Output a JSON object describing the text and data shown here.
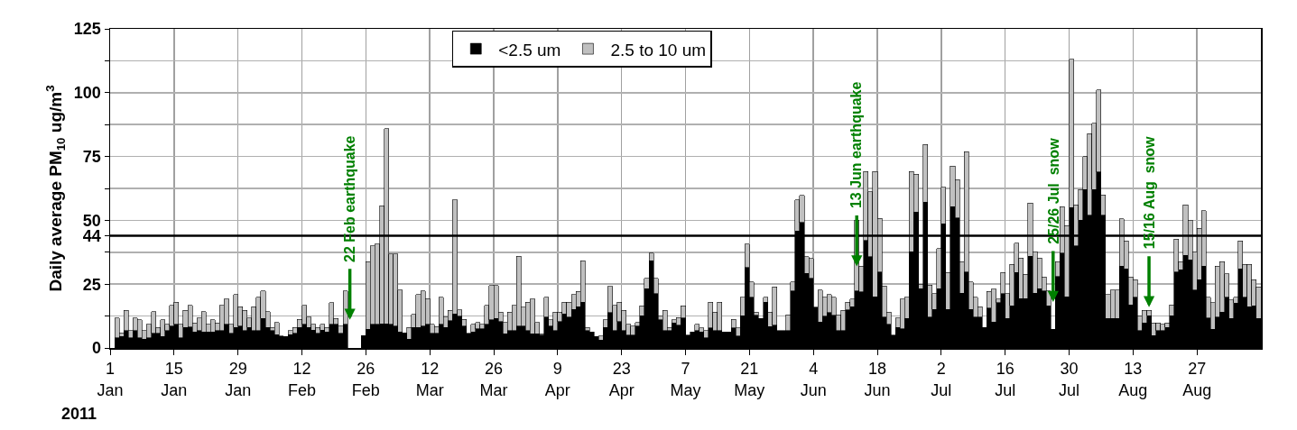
{
  "chart_data": {
    "type": "bar",
    "stacked": true,
    "ylabel": "Daily average PM$_{10}$ ug/m$^{3}$",
    "x": [
      "2011-01-02",
      "2011-01-03",
      "2011-01-04",
      "2011-01-05",
      "2011-01-06",
      "2011-01-07",
      "2011-01-08",
      "2011-01-09",
      "2011-01-10",
      "2011-01-11",
      "2011-01-12",
      "2011-01-13",
      "2011-01-14",
      "2011-01-15",
      "2011-01-16",
      "2011-01-17",
      "2011-01-18",
      "2011-01-19",
      "2011-01-20",
      "2011-01-21",
      "2011-01-22",
      "2011-01-23",
      "2011-01-24",
      "2011-01-25",
      "2011-01-26",
      "2011-01-27",
      "2011-01-28",
      "2011-01-29",
      "2011-01-30",
      "2011-01-31",
      "2011-02-01",
      "2011-02-02",
      "2011-02-03",
      "2011-02-04",
      "2011-02-05",
      "2011-02-06",
      "2011-02-07",
      "2011-02-08",
      "2011-02-09",
      "2011-02-10",
      "2011-02-11",
      "2011-02-12",
      "2011-02-13",
      "2011-02-14",
      "2011-02-15",
      "2011-02-16",
      "2011-02-17",
      "2011-02-18",
      "2011-02-19",
      "2011-02-20",
      "2011-02-21",
      "2011-02-22",
      "2011-02-23",
      "2011-02-24",
      "2011-02-25",
      "2011-02-26",
      "2011-02-27",
      "2011-02-28",
      "2011-03-01",
      "2011-03-02",
      "2011-03-03",
      "2011-03-04",
      "2011-03-05",
      "2011-03-06",
      "2011-03-07",
      "2011-03-08",
      "2011-03-09",
      "2011-03-10",
      "2011-03-11",
      "2011-03-12",
      "2011-03-13",
      "2011-03-14",
      "2011-03-15",
      "2011-03-16",
      "2011-03-17",
      "2011-03-18",
      "2011-03-19",
      "2011-03-20",
      "2011-03-21",
      "2011-03-22",
      "2011-03-23",
      "2011-03-24",
      "2011-03-25",
      "2011-03-26",
      "2011-03-27",
      "2011-03-28",
      "2011-03-29",
      "2011-03-30",
      "2011-03-31",
      "2011-04-01",
      "2011-04-02",
      "2011-04-03",
      "2011-04-04",
      "2011-04-05",
      "2011-04-06",
      "2011-04-07",
      "2011-04-08",
      "2011-04-09",
      "2011-04-10",
      "2011-04-11",
      "2011-04-12",
      "2011-04-13",
      "2011-04-14",
      "2011-04-15",
      "2011-04-16",
      "2011-04-17",
      "2011-04-18",
      "2011-04-19",
      "2011-04-20",
      "2011-04-21",
      "2011-04-22",
      "2011-04-23",
      "2011-04-24",
      "2011-04-25",
      "2011-04-26",
      "2011-04-27",
      "2011-04-28",
      "2011-04-29",
      "2011-04-30",
      "2011-05-01",
      "2011-05-02",
      "2011-05-03",
      "2011-05-04",
      "2011-05-05",
      "2011-05-06",
      "2011-05-07",
      "2011-05-08",
      "2011-05-09",
      "2011-05-10",
      "2011-05-11",
      "2011-05-12",
      "2011-05-13",
      "2011-05-14",
      "2011-05-15",
      "2011-05-16",
      "2011-05-17",
      "2011-05-18",
      "2011-05-19",
      "2011-05-20",
      "2011-05-21",
      "2011-05-22",
      "2011-05-23",
      "2011-05-24",
      "2011-05-25",
      "2011-05-26",
      "2011-05-27",
      "2011-05-28",
      "2011-05-29",
      "2011-05-30",
      "2011-05-31",
      "2011-06-01",
      "2011-06-02",
      "2011-06-03",
      "2011-06-04",
      "2011-06-05",
      "2011-06-06",
      "2011-06-07",
      "2011-06-08",
      "2011-06-09",
      "2011-06-10",
      "2011-06-11",
      "2011-06-12",
      "2011-06-13",
      "2011-06-14",
      "2011-06-15",
      "2011-06-16",
      "2011-06-17",
      "2011-06-18",
      "2011-06-19",
      "2011-06-20",
      "2011-06-21",
      "2011-06-22",
      "2011-06-23",
      "2011-06-24",
      "2011-06-25",
      "2011-06-26",
      "2011-06-27",
      "2011-06-28",
      "2011-06-29",
      "2011-06-30",
      "2011-07-01",
      "2011-07-02",
      "2011-07-03",
      "2011-07-04",
      "2011-07-05",
      "2011-07-06",
      "2011-07-07",
      "2011-07-08",
      "2011-07-09",
      "2011-07-10",
      "2011-07-11",
      "2011-07-12",
      "2011-07-13",
      "2011-07-14",
      "2011-07-15",
      "2011-07-16",
      "2011-07-17",
      "2011-07-18",
      "2011-07-19",
      "2011-07-20",
      "2011-07-21",
      "2011-07-22",
      "2011-07-23",
      "2011-07-24",
      "2011-07-25",
      "2011-07-26",
      "2011-07-27",
      "2011-07-28",
      "2011-07-29",
      "2011-07-30",
      "2011-07-31",
      "2011-08-01",
      "2011-08-02",
      "2011-08-03",
      "2011-08-04",
      "2011-08-05",
      "2011-08-06",
      "2011-08-07",
      "2011-08-08",
      "2011-08-09",
      "2011-08-10",
      "2011-08-11",
      "2011-08-12",
      "2011-08-13",
      "2011-08-14",
      "2011-08-15",
      "2011-08-16",
      "2011-08-17",
      "2011-08-18",
      "2011-08-19",
      "2011-08-20",
      "2011-08-21",
      "2011-08-22",
      "2011-08-23",
      "2011-08-24",
      "2011-08-25",
      "2011-08-26",
      "2011-08-27",
      "2011-08-28",
      "2011-08-29",
      "2011-08-30",
      "2011-08-31",
      "2011-09-01",
      "2011-09-02",
      "2011-09-03",
      "2011-09-04",
      "2011-09-05",
      "2011-09-06",
      "2011-09-07",
      "2011-09-08",
      "2011-09-09"
    ],
    "series": [
      {
        "name": "<2.5 um",
        "color": "#000000",
        "values": [
          3.9,
          4.5,
          6.8,
          4.0,
          6.8,
          4.0,
          3.4,
          4.0,
          5.7,
          5.7,
          4.5,
          6.8,
          8.6,
          9.2,
          4.0,
          8.0,
          8.2,
          6.3,
          6.8,
          6.3,
          6.3,
          6.3,
          6.8,
          6.8,
          9.2,
          5.7,
          8.0,
          8.6,
          6.8,
          8.0,
          6.8,
          6.8,
          11.5,
          8.0,
          6.8,
          5.2,
          4.7,
          4.5,
          5.2,
          5.7,
          8.0,
          9.2,
          8.0,
          6.9,
          5.7,
          6.9,
          6.3,
          9.2,
          9.2,
          5.7,
          9.2,
          null,
          null,
          null,
          4.8,
          7.4,
          9.2,
          9.2,
          9.4,
          9.4,
          9.2,
          8.6,
          6.3,
          5.9,
          3.5,
          8.0,
          8.0,
          8.6,
          9.2,
          5.7,
          5.7,
          9.2,
          8.0,
          10.6,
          13.3,
          12.5,
          8.6,
          5.7,
          6.3,
          7.5,
          7.5,
          9.2,
          11.0,
          11.5,
          10.4,
          5.6,
          6.8,
          6.8,
          8.6,
          8.6,
          6.8,
          5.6,
          5.6,
          5.0,
          12.1,
          8.6,
          6.8,
          10.4,
          13.3,
          12.1,
          15.1,
          16.2,
          18.0,
          6.8,
          6.2,
          4.5,
          3.1,
          8.0,
          13.9,
          6.8,
          10.4,
          6.8,
          5.0,
          5.0,
          8.6,
          12.7,
          23.3,
          34.1,
          21.3,
          11.0,
          6.8,
          6.8,
          9.8,
          9.0,
          11.8,
          5.0,
          6.2,
          6.8,
          6.2,
          3.9,
          7.8,
          6.8,
          6.8,
          6.2,
          6.2,
          7.8,
          4.6,
          12.7,
          31.5,
          19.8,
          12.8,
          11.5,
          18.0,
          8.4,
          9.0,
          6.8,
          6.8,
          6.8,
          22.4,
          45.9,
          49.2,
          29.2,
          27.2,
          16.0,
          10.2,
          12.4,
          13.8,
          12.8,
          6.8,
          6.8,
          15.0,
          16.2,
          22.4,
          22.0,
          42.1,
          35.7,
          20.0,
          29.8,
          12.1,
          9.2,
          5.0,
          8.0,
          7.5,
          11.5,
          37.7,
          53.3,
          23.3,
          57.1,
          12.1,
          15.1,
          23.3,
          48.6,
          15.1,
          55.3,
          51.0,
          21.5,
          29.8,
          15.1,
          12.1,
          12.1,
          8.0,
          15.7,
          10.2,
          17.7,
          21.2,
          11.5,
          16.5,
          29.5,
          19.4,
          19.4,
          35.9,
          21.5,
          23.3,
          22.4,
          16.5,
          7.4,
          28.0,
          37.2,
          20,
          55,
          40,
          50,
          62,
          52,
          62,
          69,
          52,
          11.5,
          11.5,
          11.5,
          32.1,
          31.0,
          16.8,
          19.8,
          6.8,
          9.8,
          12.7,
          4.8,
          6.8,
          6.8,
          8.0,
          12.7,
          29.8,
          30.6,
          36.3,
          34.5,
          22.7,
          26.8,
          32.1,
          11.8,
          7.3,
          12.1,
          14.1,
          19.8,
          11.5,
          17.5,
          31.0,
          19.8,
          16.2,
          16.5,
          11.5
        ]
      },
      {
        "name": "2.5 to 10 um",
        "color": "#c0c0c0",
        "values": [
          7.9,
          1.5,
          7.9,
          2.8,
          5.0,
          7.0,
          3.4,
          5.2,
          8.5,
          2.3,
          6.5,
          2.4,
          8.1,
          8.7,
          5.2,
          6.7,
          8.5,
          3.5,
          5.0,
          7.9,
          2.9,
          4.7,
          3.0,
          9.9,
          10.0,
          3.5,
          12.9,
          7.6,
          7.9,
          3.8,
          9.4,
          13.0,
          10.9,
          6.2,
          1.2,
          4.8,
          0,
          0,
          1.6,
          2.3,
          3.3,
          7.4,
          4.1,
          2.3,
          2.3,
          2.3,
          1.7,
          8.6,
          2.3,
          2.9,
          13.2,
          null,
          null,
          null,
          0,
          26.5,
          30.8,
          31.5,
          46.3,
          76.5,
          27.6,
          28.2,
          16.4,
          0,
          4.5,
          5.1,
          12.9,
          13.8,
          10.2,
          3.5,
          2.7,
          10.6,
          4.1,
          4.1,
          44.7,
          2.5,
          2.7,
          0,
          2.9,
          2.5,
          1.7,
          7.4,
          13.5,
          13.0,
          3.7,
          4.4,
          7.3,
          9.9,
          27.3,
          7.3,
          11.1,
          13.6,
          4.4,
          0.6,
          7.7,
          2.4,
          7.3,
          3.7,
          4.6,
          5.8,
          5.8,
          5.9,
          16.1,
          1.2,
          0,
          0,
          1.6,
          3.0,
          10.2,
          9.9,
          7.5,
          7.9,
          4.2,
          3.6,
          1.4,
          3.8,
          4.0,
          3.0,
          6.0,
          1.7,
          7.9,
          1.2,
          1.2,
          3.0,
          4.7,
          0,
          0,
          2.4,
          1.6,
          2.9,
          10.2,
          7.3,
          11.2,
          0,
          0,
          3.4,
          3.2,
          7.1,
          9.2,
          6.1,
          1.3,
          0,
          1.8,
          5.7,
          14.9,
          0,
          0,
          6.2,
          3.5,
          12.1,
          10.6,
          6.5,
          7.9,
          0,
          12.5,
          7.4,
          7.1,
          7.0,
          6.2,
          7.9,
          3.0,
          3.0,
          27.6,
          10.0,
          27.1,
          25.5,
          49.2,
          20.9,
          12.2,
          4.9,
          0,
          3.8,
          11.7,
          8.3,
          31.5,
          14.7,
          1.5,
          22.7,
          12.5,
          6.1,
          15.7,
          14.4,
          14.5,
          15.9,
          15.0,
          12.4,
          47.1,
          10.8,
          7.7,
          4.1,
          0,
          6.4,
          12.8,
          1.5,
          8.4,
          9.7,
          16.2,
          11.5,
          15.9,
          9.4,
          20.9,
          16.2,
          12.0,
          5.4,
          5.9,
          0,
          5.9,
          18.2,
          28,
          58,
          16,
          12,
          13,
          32,
          26,
          32,
          8,
          9.4,
          11.2,
          11.2,
          18.5,
          10.9,
          11.0,
          7.0,
          5.7,
          4.9,
          2.0,
          5.0,
          3.0,
          2.4,
          1.8,
          4.1,
          12.9,
          3.3,
          19.7,
          15.6,
          15.0,
          20.1,
          21.6,
          8.0,
          10.4,
          20.0,
          19.8,
          9.2,
          7.3,
          2.3,
          10.9,
          12.9,
          16.5,
          10.3,
          12.4
        ]
      }
    ],
    "xlim": [
      "2011-01-01",
      "2011-09-10"
    ],
    "xticks": [
      {
        "value": "2011-01-01",
        "label": "1\nJan"
      },
      {
        "value": "2011-01-15",
        "label": "15\nJan"
      },
      {
        "value": "2011-01-29",
        "label": "29\nJan"
      },
      {
        "value": "2011-02-12",
        "label": "12\nFeb"
      },
      {
        "value": "2011-02-26",
        "label": "26\nFeb"
      },
      {
        "value": "2011-03-12",
        "label": "12\nMar"
      },
      {
        "value": "2011-03-26",
        "label": "26\nMar"
      },
      {
        "value": "2011-04-09",
        "label": "9\nApr"
      },
      {
        "value": "2011-04-23",
        "label": "23\nApr"
      },
      {
        "value": "2011-05-07",
        "label": "7\nMay"
      },
      {
        "value": "2011-05-21",
        "label": "21\nMay"
      },
      {
        "value": "2011-06-04",
        "label": "4\nJun"
      },
      {
        "value": "2011-06-18",
        "label": "18\nJun"
      },
      {
        "value": "2011-07-02",
        "label": "2\nJul"
      },
      {
        "value": "2011-07-16",
        "label": "16\nJul"
      },
      {
        "value": "2011-07-30",
        "label": "30\nJul"
      },
      {
        "value": "2011-08-13",
        "label": "13\nAug"
      },
      {
        "value": "2011-08-27",
        "label": "27\nAug"
      }
    ],
    "ylim": [
      0,
      125
    ],
    "yticks": [
      0,
      {
        "value": 12.5,
        "label": null
      },
      25,
      {
        "value": 37.5,
        "label": null
      },
      44,
      50,
      {
        "value": 62.5,
        "label": null
      },
      75,
      {
        "value": 87.5,
        "label": null
      },
      100,
      {
        "value": 112.5,
        "label": null
      },
      125
    ],
    "ref_lines": [
      {
        "axis": "y",
        "value": 44,
        "color": "#000000"
      }
    ],
    "annotations": [
      {
        "text": "22 Feb earthquake",
        "x": "2011-02-22",
        "y": 11
      },
      {
        "text": "13 Jun earthquake",
        "x": "2011-06-13",
        "y": 32
      },
      {
        "text": "25/26 Jul  snow",
        "x": "2011-07-26",
        "y": 18
      },
      {
        "text": "15/16 Aug  snow",
        "x": "2011-08-16",
        "y": 16
      },
      "2011"
    ],
    "grid": true,
    "legend": "top"
  }
}
